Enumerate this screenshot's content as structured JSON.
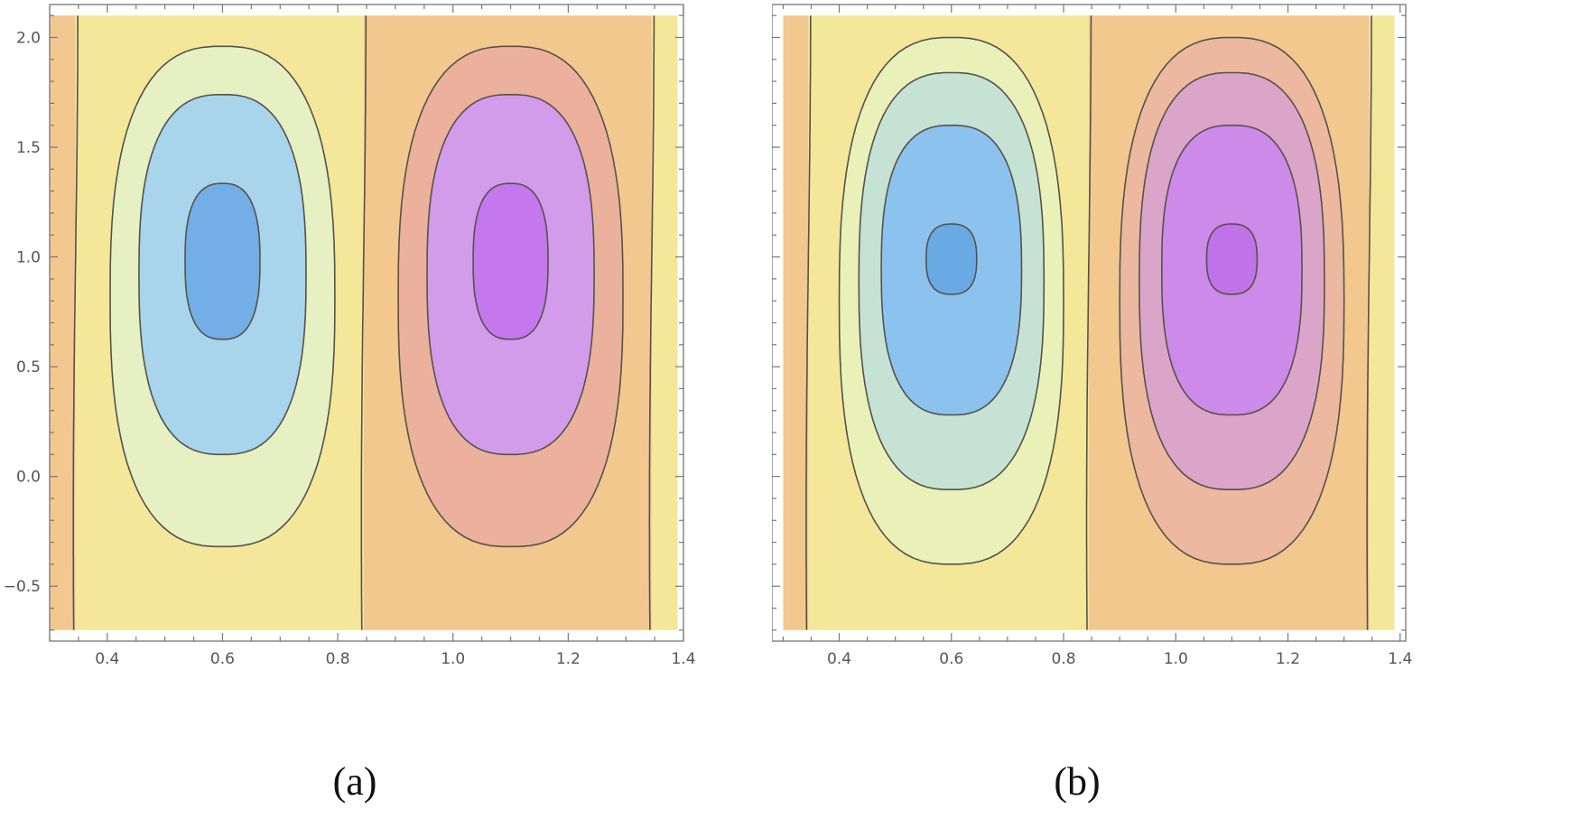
{
  "chart_data": [
    {
      "type": "contour",
      "panel_label": "(a)",
      "xlim": [
        0.3,
        1.4
      ],
      "ylim": [
        -0.75,
        2.15
      ],
      "plot_region": {
        "x": [
          0.3,
          1.39
        ],
        "y": [
          -0.7,
          2.1
        ]
      },
      "x_ticks": [
        0.4,
        0.6,
        0.8,
        1.0,
        1.2,
        1.4
      ],
      "x_tick_labels": [
        "0.4",
        "0.6",
        "0.8",
        "1.0",
        "1.2",
        "1.4"
      ],
      "y_ticks": [
        -0.5,
        0.0,
        0.5,
        1.0,
        1.5,
        2.0
      ],
      "y_tick_labels": [
        "−0.5",
        "0.0",
        "0.5",
        "1.0",
        "1.5",
        "2.0"
      ],
      "field": {
        "type": "sin_x_times_smooth_y",
        "x_zeros": [
          0.345,
          0.845,
          1.345
        ],
        "center_y": 1.0
      },
      "left_cell": {
        "center": [
          0.6,
          1.0
        ],
        "colors": [
          "#f4e79a",
          "#e6f0c2",
          "#a8d4ec",
          "#73aee6"
        ],
        "contours": [
          {
            "cx": 0.6,
            "cy": 0.82,
            "rx": 0.195,
            "ry": 1.14
          },
          {
            "cx": 0.6,
            "cy": 0.92,
            "rx": 0.145,
            "ry": 0.82
          },
          {
            "cx": 0.6,
            "cy": 0.98,
            "rx": 0.065,
            "ry": 0.355
          }
        ]
      },
      "right_cell": {
        "center": [
          1.1,
          1.0
        ],
        "colors": [
          "#f2c88f",
          "#ebb19c",
          "#d29cea",
          "#c577ed"
        ],
        "contours": [
          {
            "cx": 1.1,
            "cy": 0.82,
            "rx": 0.195,
            "ry": 1.14
          },
          {
            "cx": 1.1,
            "cy": 0.92,
            "rx": 0.145,
            "ry": 0.82
          },
          {
            "cx": 1.1,
            "cy": 0.98,
            "rx": 0.065,
            "ry": 0.355
          }
        ]
      },
      "outer_colors": {
        "left": "#f2c88f",
        "right_edge": "#f4e79a"
      }
    },
    {
      "type": "contour",
      "panel_label": "(b)",
      "xlim": [
        0.28,
        1.41
      ],
      "ylim": [
        -0.75,
        2.15
      ],
      "plot_region": {
        "x": [
          0.3,
          1.39
        ],
        "y": [
          -0.7,
          2.1
        ]
      },
      "x_ticks": [
        0.4,
        0.6,
        0.8,
        1.0,
        1.2,
        1.4
      ],
      "x_tick_labels": [
        "0.4",
        "0.6",
        "0.8",
        "1.0",
        "1.2",
        "1.4"
      ],
      "y_ticks": [
        -0.5,
        0.0,
        0.5,
        1.0,
        1.5,
        2.0
      ],
      "y_tick_labels": [
        "−0.5",
        "0.0",
        "0.5",
        "1.0",
        "1.5",
        "2.0"
      ],
      "field": {
        "type": "sin_x_times_smooth_y",
        "x_zeros": [
          0.345,
          0.845,
          1.345
        ],
        "center_y": 1.0
      },
      "left_cell": {
        "center": [
          0.6,
          1.0
        ],
        "colors": [
          "#f4e79a",
          "#eaf1b8",
          "#c6e2d4",
          "#8cc2ee",
          "#6aaae4"
        ],
        "contours": [
          {
            "cx": 0.6,
            "cy": 0.8,
            "rx": 0.2,
            "ry": 1.2
          },
          {
            "cx": 0.6,
            "cy": 0.89,
            "rx": 0.165,
            "ry": 0.95
          },
          {
            "cx": 0.6,
            "cy": 0.94,
            "rx": 0.125,
            "ry": 0.66
          },
          {
            "cx": 0.6,
            "cy": 0.99,
            "rx": 0.045,
            "ry": 0.16
          }
        ]
      },
      "right_cell": {
        "center": [
          1.1,
          1.0
        ],
        "colors": [
          "#f2c88f",
          "#ecb89f",
          "#dba5c9",
          "#cd8ae9",
          "#c072e8"
        ],
        "contours": [
          {
            "cx": 1.1,
            "cy": 0.8,
            "rx": 0.2,
            "ry": 1.2
          },
          {
            "cx": 1.1,
            "cy": 0.89,
            "rx": 0.165,
            "ry": 0.95
          },
          {
            "cx": 1.1,
            "cy": 0.94,
            "rx": 0.125,
            "ry": 0.66
          },
          {
            "cx": 1.1,
            "cy": 0.99,
            "rx": 0.045,
            "ry": 0.16
          }
        ]
      },
      "outer_colors": {
        "left": "#f2c88f",
        "right_edge": "#f4e79a"
      }
    }
  ]
}
